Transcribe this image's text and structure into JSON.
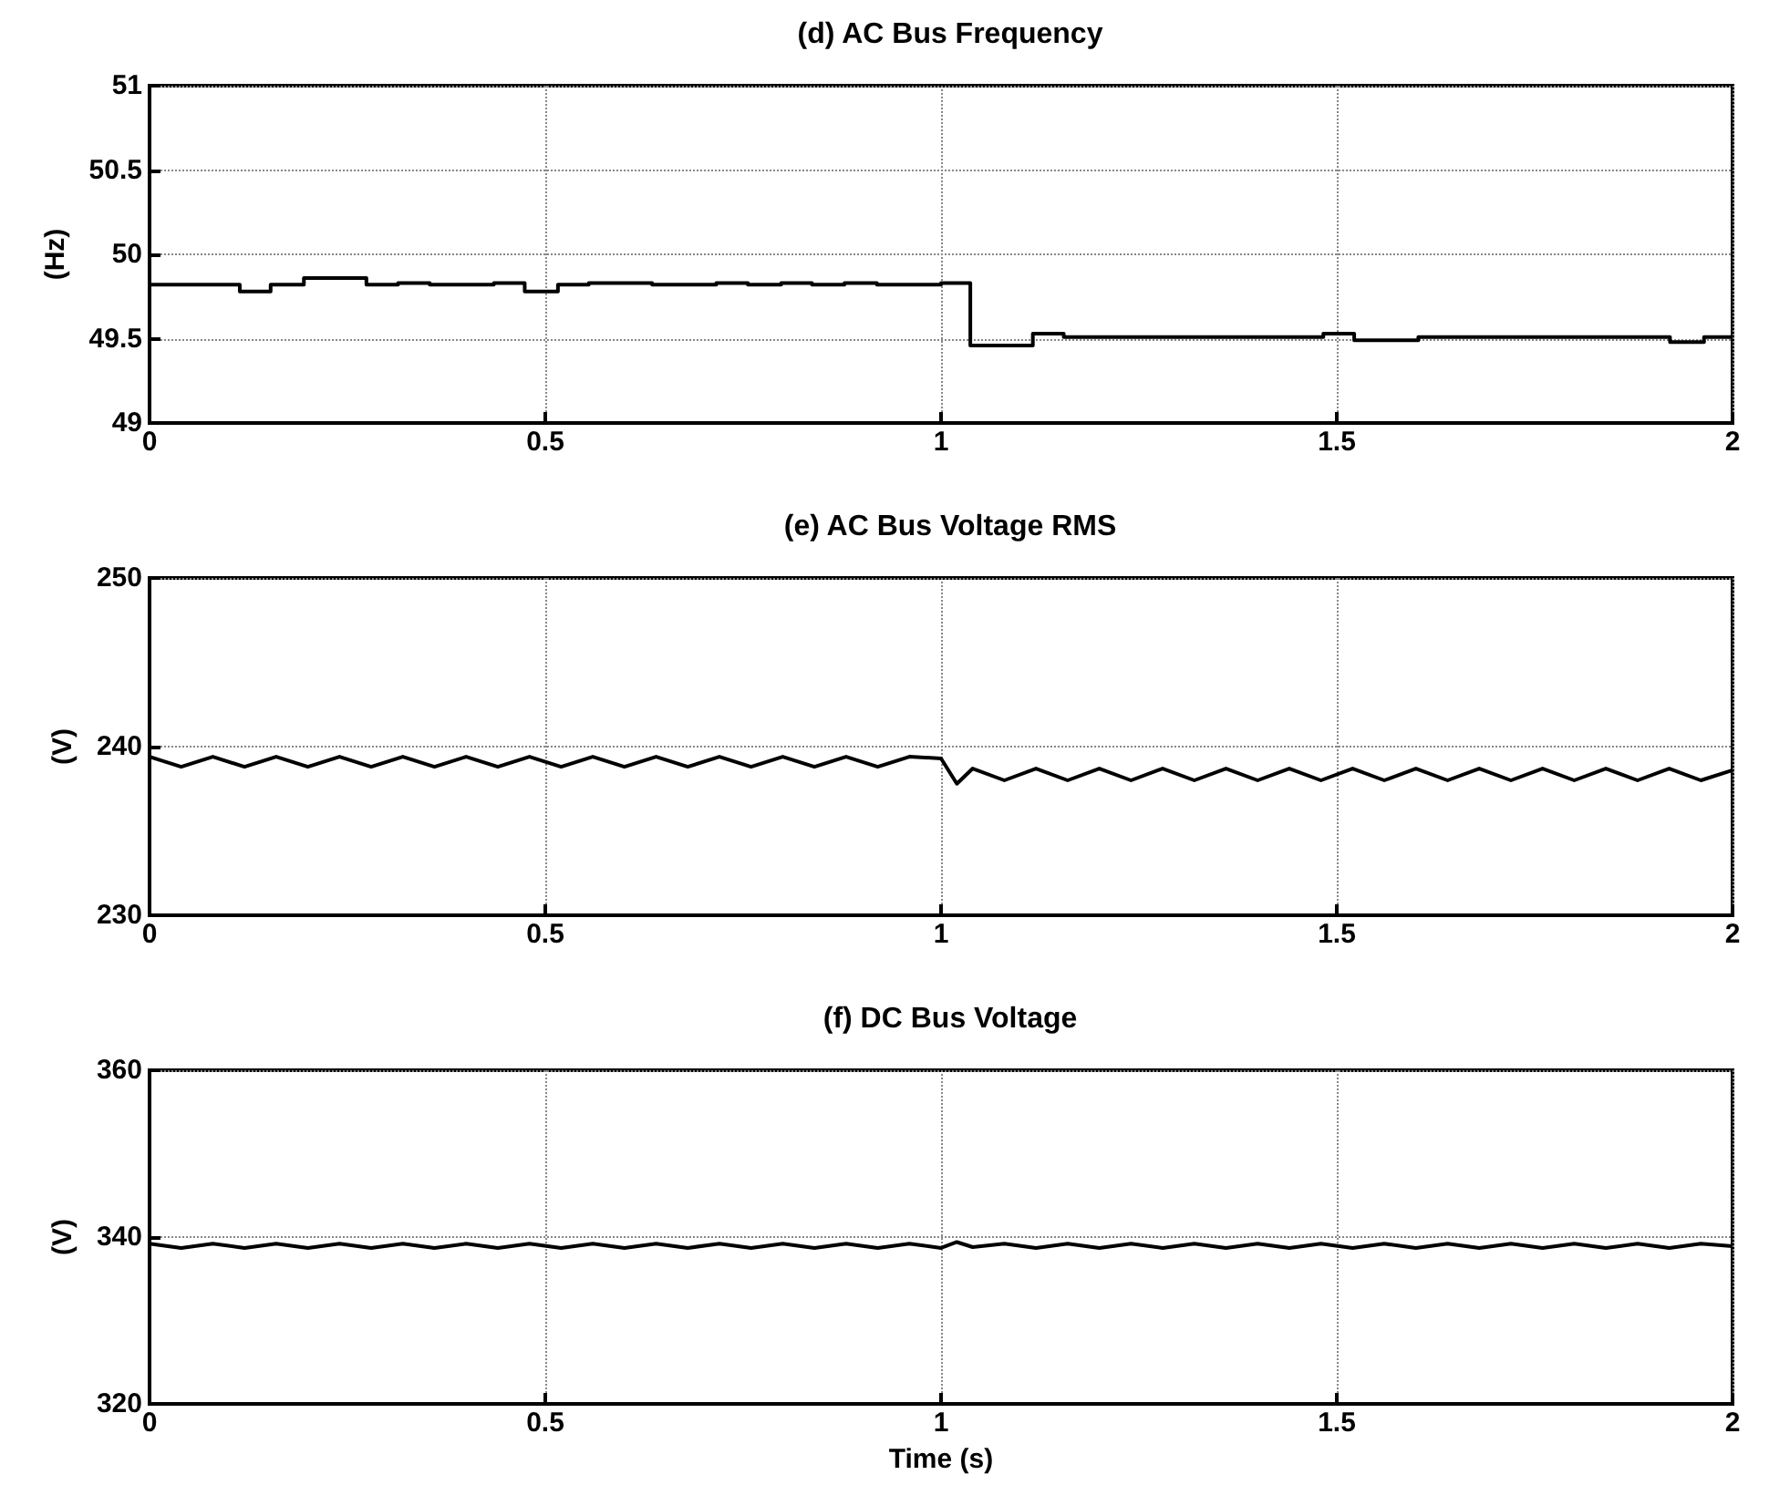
{
  "chart_data": [
    {
      "type": "step",
      "title": "(d) AC Bus Frequency",
      "ylabel": "(Hz)",
      "xlim": [
        0,
        2
      ],
      "xticks": [
        0,
        0.5,
        1,
        1.5,
        2
      ],
      "ylim": [
        49,
        51
      ],
      "yticks": [
        49,
        49.5,
        50,
        50.5,
        51
      ],
      "grid": true,
      "line_style": "solid",
      "marker": "none",
      "series": [
        {
          "color": "#000000",
          "x": [
            0,
            0.114,
            0.153,
            0.195,
            0.274,
            0.314,
            0.354,
            0.435,
            0.474,
            0.516,
            0.555,
            0.635,
            0.716,
            0.756,
            0.798,
            0.837,
            0.878,
            0.919,
            1.0,
            1.037,
            1.116,
            1.155,
            1.483,
            1.522,
            1.603,
            1.921,
            1.964,
            2
          ],
          "values": [
            49.82,
            49.78,
            49.82,
            49.86,
            49.82,
            49.83,
            49.82,
            49.83,
            49.78,
            49.82,
            49.83,
            49.82,
            49.83,
            49.82,
            49.83,
            49.82,
            49.83,
            49.82,
            49.83,
            49.46,
            49.53,
            49.51,
            49.53,
            49.49,
            49.51,
            49.48,
            49.51,
            49.51
          ]
        }
      ]
    },
    {
      "type": "line",
      "title": "(e) AC Bus Voltage RMS",
      "ylabel": "(V)",
      "xlim": [
        0,
        2
      ],
      "xticks": [
        0,
        0.5,
        1,
        1.5,
        2
      ],
      "ylim": [
        230,
        250
      ],
      "yticks": [
        230,
        240,
        250
      ],
      "grid": true,
      "line_style": "solid",
      "marker": "none",
      "series": [
        {
          "color": "#000000",
          "x": [
            0,
            0.04,
            0.08,
            0.12,
            0.16,
            0.2,
            0.24,
            0.28,
            0.32,
            0.36,
            0.4,
            0.44,
            0.48,
            0.52,
            0.56,
            0.6,
            0.64,
            0.68,
            0.72,
            0.76,
            0.8,
            0.84,
            0.88,
            0.92,
            0.96,
            1.0,
            1.02,
            1.04,
            1.08,
            1.12,
            1.16,
            1.2,
            1.24,
            1.28,
            1.32,
            1.36,
            1.4,
            1.44,
            1.48,
            1.52,
            1.56,
            1.6,
            1.64,
            1.68,
            1.72,
            1.76,
            1.8,
            1.84,
            1.88,
            1.92,
            1.96,
            2
          ],
          "values": [
            239.4,
            238.8,
            239.4,
            238.8,
            239.4,
            238.8,
            239.4,
            238.8,
            239.4,
            238.8,
            239.4,
            238.8,
            239.4,
            238.8,
            239.4,
            238.8,
            239.4,
            238.8,
            239.4,
            238.8,
            239.4,
            238.8,
            239.4,
            238.8,
            239.4,
            239.3,
            237.8,
            238.7,
            238.0,
            238.7,
            238.0,
            238.7,
            238.0,
            238.7,
            238.0,
            238.7,
            238.0,
            238.7,
            238.0,
            238.7,
            238.0,
            238.7,
            238.0,
            238.7,
            238.0,
            238.7,
            238.0,
            238.7,
            238.0,
            238.7,
            238.0,
            238.6
          ]
        }
      ]
    },
    {
      "type": "line",
      "title": "(f) DC Bus Voltage",
      "ylabel": "(V)",
      "xlabel": "Time (s)",
      "xlim": [
        0,
        2
      ],
      "xticks": [
        0,
        0.5,
        1,
        1.5,
        2
      ],
      "ylim": [
        320,
        360
      ],
      "yticks": [
        320,
        340,
        360
      ],
      "grid": true,
      "line_style": "solid",
      "marker": "none",
      "series": [
        {
          "color": "#000000",
          "x": [
            0,
            0.04,
            0.08,
            0.12,
            0.16,
            0.2,
            0.24,
            0.28,
            0.32,
            0.36,
            0.4,
            0.44,
            0.48,
            0.52,
            0.56,
            0.6,
            0.64,
            0.68,
            0.72,
            0.76,
            0.8,
            0.84,
            0.88,
            0.92,
            0.96,
            1.0,
            1.02,
            1.04,
            1.08,
            1.12,
            1.16,
            1.2,
            1.24,
            1.28,
            1.32,
            1.36,
            1.4,
            1.44,
            1.48,
            1.52,
            1.56,
            1.6,
            1.64,
            1.68,
            1.72,
            1.76,
            1.8,
            1.84,
            1.88,
            1.92,
            1.96,
            2
          ],
          "values": [
            339.2,
            338.7,
            339.2,
            338.7,
            339.2,
            338.7,
            339.2,
            338.7,
            339.2,
            338.7,
            339.2,
            338.7,
            339.2,
            338.7,
            339.2,
            338.7,
            339.2,
            338.7,
            339.2,
            338.7,
            339.2,
            338.7,
            339.2,
            338.7,
            339.2,
            338.7,
            339.4,
            338.8,
            339.2,
            338.7,
            339.2,
            338.7,
            339.2,
            338.7,
            339.2,
            338.7,
            339.2,
            338.7,
            339.2,
            338.7,
            339.2,
            338.7,
            339.2,
            338.7,
            339.2,
            338.7,
            339.2,
            338.7,
            339.2,
            338.7,
            339.2,
            338.9
          ]
        }
      ]
    }
  ]
}
